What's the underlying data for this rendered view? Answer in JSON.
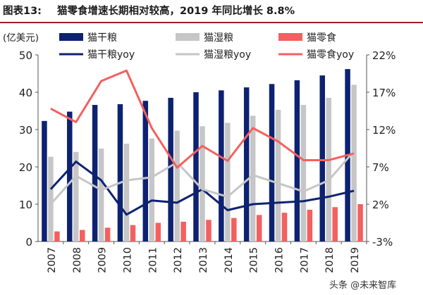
{
  "figure_label": "图表13:",
  "title_text": "猫零食增速长期相对较高，2019 年同比增长 8.8%",
  "watermark": "头条 @未来智库",
  "chart_data": {
    "type": "bar",
    "title": "猫零食增速长期相对较高，2019 年同比增长 8.8%",
    "unit_label": "(亿美元)",
    "categories": [
      "2007",
      "2008",
      "2009",
      "2010",
      "2011",
      "2012",
      "2013",
      "2014",
      "2015",
      "2016",
      "2017",
      "2018",
      "2019"
    ],
    "y_left": {
      "min": 0,
      "max": 50,
      "ticks": [
        "0",
        "10",
        "20",
        "30",
        "40",
        "50"
      ]
    },
    "y_right": {
      "min": -3,
      "max": 22,
      "ticks": [
        "-3%",
        "2%",
        "7%",
        "12%",
        "17%",
        "22%"
      ]
    },
    "series": [
      {
        "name": "猫干粮",
        "type": "bar",
        "axis": "left",
        "color": "#0d2270",
        "values": [
          32.3,
          34.8,
          36.6,
          36.8,
          37.7,
          38.5,
          40.0,
          40.5,
          41.3,
          42.2,
          43.2,
          44.5,
          46.2
        ]
      },
      {
        "name": "猫湿粮",
        "type": "bar",
        "axis": "left",
        "color": "#c6c6c6",
        "values": [
          22.7,
          24.0,
          24.9,
          26.2,
          27.6,
          29.7,
          30.9,
          31.8,
          33.7,
          35.3,
          36.6,
          38.5,
          42.0
        ]
      },
      {
        "name": "猫零食",
        "type": "bar",
        "axis": "left",
        "color": "#f3605f",
        "values": [
          2.7,
          3.1,
          3.7,
          4.4,
          5.0,
          5.3,
          5.8,
          6.3,
          7.1,
          7.7,
          8.5,
          9.2,
          10.0
        ]
      },
      {
        "name": "猫干粮yoy",
        "type": "line",
        "axis": "right",
        "color": "#0d2270",
        "values": [
          4.0,
          7.7,
          5.2,
          0.6,
          2.5,
          2.2,
          4.0,
          1.2,
          2.0,
          2.2,
          2.4,
          3.0,
          3.8
        ]
      },
      {
        "name": "猫湿粮yoy",
        "type": "line",
        "axis": "right",
        "color": "#c6c6c6",
        "values": [
          2.0,
          5.8,
          3.9,
          5.2,
          5.6,
          7.6,
          4.0,
          3.0,
          5.9,
          4.8,
          3.7,
          5.2,
          9.1
        ]
      },
      {
        "name": "猫零食yoy",
        "type": "line",
        "axis": "right",
        "color": "#f3605f",
        "values": [
          14.8,
          13.0,
          18.5,
          19.9,
          12.2,
          6.9,
          9.8,
          7.8,
          12.2,
          10.4,
          7.9,
          7.9,
          8.8
        ]
      }
    ],
    "legend_placement": "top",
    "grid": false
  }
}
